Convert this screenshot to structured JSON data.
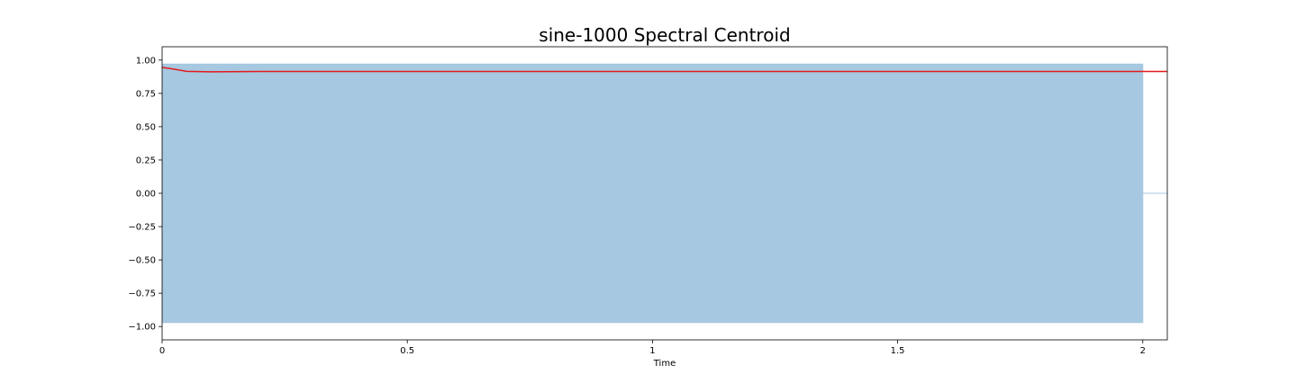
{
  "chart_data": {
    "type": "area",
    "title": "sine-1000 Spectral Centroid",
    "xlabel": "Time",
    "ylabel": "",
    "xlim": [
      0,
      2.05
    ],
    "ylim": [
      -1.1,
      1.1
    ],
    "grid": false,
    "x_ticks": [
      {
        "value": 0,
        "label": "0"
      },
      {
        "value": 0.5,
        "label": "0.5"
      },
      {
        "value": 1,
        "label": "1"
      },
      {
        "value": 1.5,
        "label": "1.5"
      },
      {
        "value": 2,
        "label": "2"
      }
    ],
    "y_ticks": [
      {
        "value": 1.0,
        "label": "1.00"
      },
      {
        "value": 0.75,
        "label": "0.75"
      },
      {
        "value": 0.5,
        "label": "0.50"
      },
      {
        "value": 0.25,
        "label": "0.25"
      },
      {
        "value": 0.0,
        "label": "0.00"
      },
      {
        "value": -0.25,
        "label": "−0.25"
      },
      {
        "value": -0.5,
        "label": "−0.50"
      },
      {
        "value": -0.75,
        "label": "−0.75"
      },
      {
        "value": -1.0,
        "label": "−1.00"
      }
    ],
    "series": [
      {
        "kind": "waveform-envelope",
        "color": "#a6c8e0",
        "x": [
          0.0,
          2.0,
          2.0,
          2.05
        ],
        "max": [
          0.97,
          0.97,
          0.0,
          0.0
        ],
        "min": [
          -0.97,
          -0.97,
          0.0,
          0.0
        ]
      },
      {
        "kind": "line",
        "color": "#e31a1c",
        "x": [
          0.0,
          0.02,
          0.05,
          0.1,
          0.2,
          0.3,
          0.4,
          0.5,
          0.6,
          0.7,
          0.8,
          0.9,
          1.0,
          1.1,
          1.2,
          1.3,
          1.4,
          1.5,
          1.6,
          1.7,
          1.8,
          1.9,
          2.0,
          2.05
        ],
        "y": [
          0.945,
          0.935,
          0.915,
          0.912,
          0.914,
          0.914,
          0.914,
          0.914,
          0.914,
          0.914,
          0.914,
          0.914,
          0.914,
          0.914,
          0.914,
          0.914,
          0.914,
          0.914,
          0.914,
          0.914,
          0.914,
          0.914,
          0.914,
          0.914
        ]
      }
    ]
  }
}
